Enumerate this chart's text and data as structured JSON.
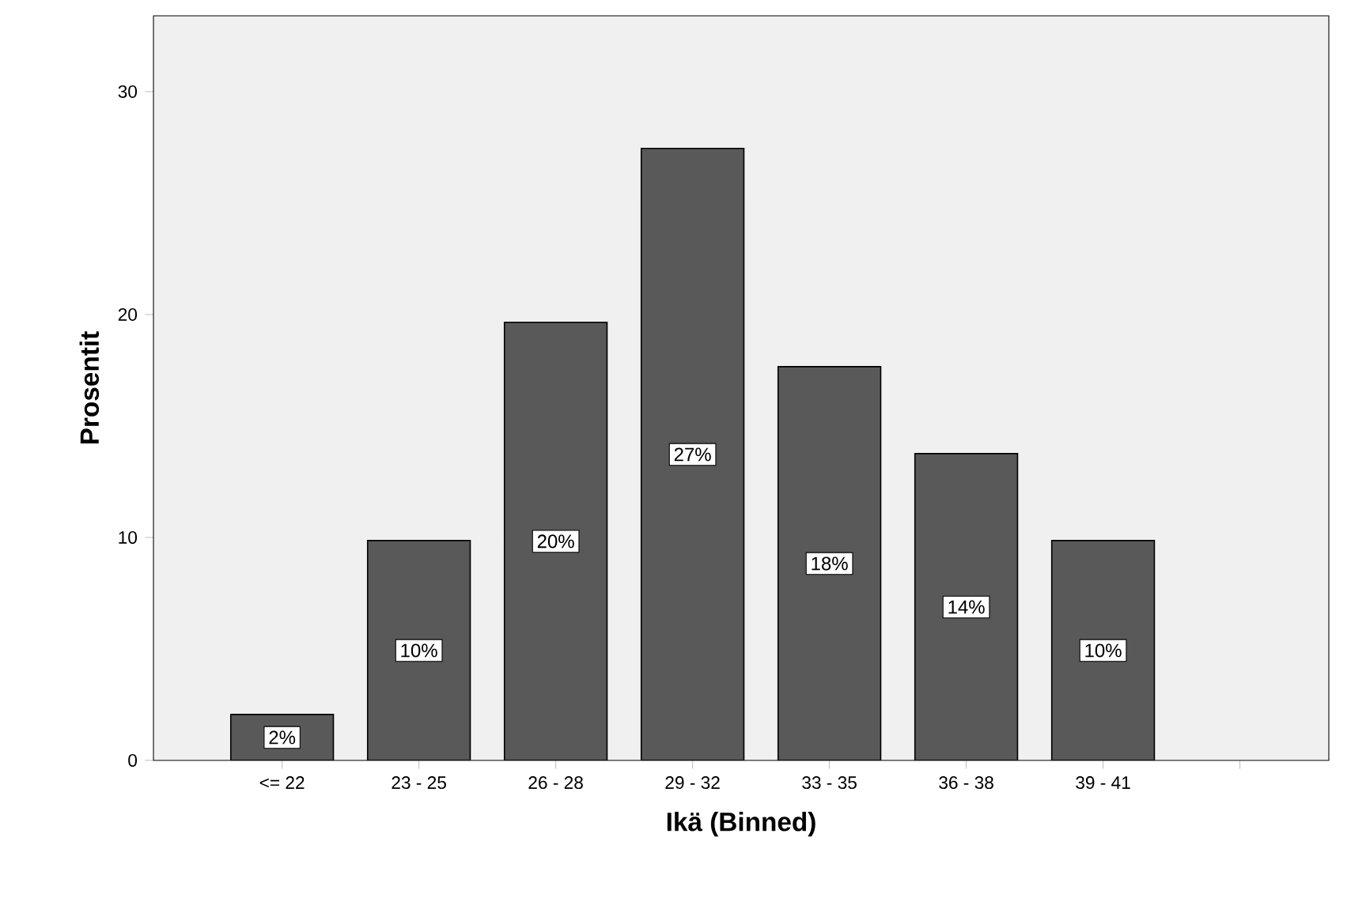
{
  "chart_data": {
    "type": "bar",
    "xlabel": "Ikä (Binned)",
    "ylabel": "Prosentit",
    "categories": [
      "<= 22",
      "23 - 25",
      "26 - 28",
      "29 - 32",
      "33 - 35",
      "36 - 38",
      "39 - 41",
      null
    ],
    "values": [
      2.06,
      9.86,
      19.65,
      27.45,
      17.66,
      13.76,
      9.86,
      null
    ],
    "value_labels": [
      "2%",
      "10%",
      "20%",
      "27%",
      "18%",
      "14%",
      "10%",
      null
    ],
    "color": "#595959",
    "ylim": [
      0,
      33.4
    ],
    "yticks": [
      0,
      10,
      20,
      30
    ],
    "grid": false
  }
}
